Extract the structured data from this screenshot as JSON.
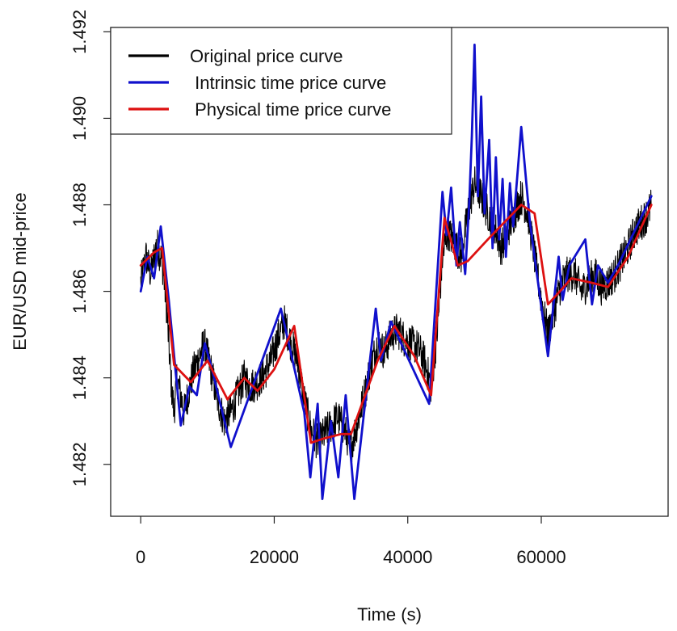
{
  "chart_data": {
    "type": "line",
    "title": "",
    "xlabel": "Time (s)",
    "ylabel": "EUR/USD mid-price",
    "xlim": [
      -4500,
      79000
    ],
    "ylim": [
      1.4808,
      1.4921
    ],
    "x_ticks": [
      {
        "value": 0,
        "label": "0"
      },
      {
        "value": 20000,
        "label": "20000"
      },
      {
        "value": 40000,
        "label": "40000"
      },
      {
        "value": 60000,
        "label": "60000"
      }
    ],
    "y_ticks": [
      {
        "value": 1.482,
        "label": "1.482"
      },
      {
        "value": 1.484,
        "label": "1.484"
      },
      {
        "value": 1.486,
        "label": "1.486"
      },
      {
        "value": 1.488,
        "label": "1.488"
      },
      {
        "value": 1.49,
        "label": "1.490"
      },
      {
        "value": 1.492,
        "label": "1.492"
      }
    ],
    "legend": {
      "position": "top-left",
      "entries": [
        {
          "label": "Original price curve",
          "color": "#000000"
        },
        {
          "label": " Intrinsic time price curve",
          "color": "#1010cc"
        },
        {
          "label": " Physical time price curve",
          "color": "#dd1111"
        }
      ]
    },
    "series": [
      {
        "name": "Original price curve",
        "color": "#000000",
        "kind": "noisy",
        "points": [
          [
            0,
            1.4862
          ],
          [
            800,
            1.4868
          ],
          [
            1500,
            1.4864
          ],
          [
            2400,
            1.4871
          ],
          [
            3200,
            1.4867
          ],
          [
            3800,
            1.4858
          ],
          [
            4200,
            1.4848
          ],
          [
            4600,
            1.4838
          ],
          [
            5000,
            1.4832
          ],
          [
            5400,
            1.484
          ],
          [
            6000,
            1.4836
          ],
          [
            6500,
            1.4832
          ],
          [
            7200,
            1.4837
          ],
          [
            8000,
            1.4842
          ],
          [
            8800,
            1.4845
          ],
          [
            9500,
            1.4848
          ],
          [
            10500,
            1.4842
          ],
          [
            11500,
            1.4835
          ],
          [
            12500,
            1.483
          ],
          [
            13500,
            1.4832
          ],
          [
            14500,
            1.4836
          ],
          [
            15500,
            1.484
          ],
          [
            16500,
            1.4838
          ],
          [
            17500,
            1.4839
          ],
          [
            18500,
            1.4841
          ],
          [
            19500,
            1.4844
          ],
          [
            20500,
            1.4849
          ],
          [
            21500,
            1.4853
          ],
          [
            22500,
            1.4848
          ],
          [
            23500,
            1.4844
          ],
          [
            24500,
            1.4835
          ],
          [
            25500,
            1.4828
          ],
          [
            26500,
            1.4825
          ],
          [
            27500,
            1.4827
          ],
          [
            28500,
            1.4829
          ],
          [
            29500,
            1.4831
          ],
          [
            30500,
            1.4828
          ],
          [
            31500,
            1.4824
          ],
          [
            32500,
            1.483
          ],
          [
            33500,
            1.4836
          ],
          [
            34500,
            1.4843
          ],
          [
            35500,
            1.4848
          ],
          [
            36500,
            1.4846
          ],
          [
            37500,
            1.485
          ],
          [
            38500,
            1.4851
          ],
          [
            39500,
            1.4849
          ],
          [
            40500,
            1.4848
          ],
          [
            41500,
            1.4847
          ],
          [
            42500,
            1.4844
          ],
          [
            43500,
            1.4838
          ],
          [
            44500,
            1.4852
          ],
          [
            45200,
            1.4868
          ],
          [
            46000,
            1.4874
          ],
          [
            47000,
            1.4871
          ],
          [
            48000,
            1.4868
          ],
          [
            49000,
            1.4878
          ],
          [
            50000,
            1.4885
          ],
          [
            51000,
            1.4882
          ],
          [
            52000,
            1.4878
          ],
          [
            53000,
            1.4875
          ],
          [
            54000,
            1.487
          ],
          [
            55000,
            1.4874
          ],
          [
            56000,
            1.4878
          ],
          [
            57000,
            1.4882
          ],
          [
            58000,
            1.4878
          ],
          [
            59000,
            1.4868
          ],
          [
            60000,
            1.4858
          ],
          [
            61000,
            1.485
          ],
          [
            62000,
            1.4856
          ],
          [
            63000,
            1.4862
          ],
          [
            64000,
            1.4864
          ],
          [
            65000,
            1.4864
          ],
          [
            66000,
            1.486
          ],
          [
            67000,
            1.4862
          ],
          [
            68000,
            1.4864
          ],
          [
            69000,
            1.4861
          ],
          [
            70000,
            1.4862
          ],
          [
            71000,
            1.4864
          ],
          [
            72000,
            1.4867
          ],
          [
            73000,
            1.487
          ],
          [
            74000,
            1.4874
          ],
          [
            75000,
            1.4876
          ],
          [
            76000,
            1.4878
          ],
          [
            76500,
            1.488
          ]
        ]
      },
      {
        "name": "Intrinsic time price curve",
        "color": "#1010cc",
        "kind": "polyline",
        "points": [
          [
            0,
            1.486
          ],
          [
            1000,
            1.4868
          ],
          [
            2000,
            1.4863
          ],
          [
            3000,
            1.4875
          ],
          [
            4200,
            1.4858
          ],
          [
            6000,
            1.4829
          ],
          [
            7300,
            1.4838
          ],
          [
            8400,
            1.4836
          ],
          [
            9600,
            1.4848
          ],
          [
            10500,
            1.4843
          ],
          [
            13500,
            1.4824
          ],
          [
            21000,
            1.4856
          ],
          [
            24500,
            1.4832
          ],
          [
            25400,
            1.4817
          ],
          [
            26500,
            1.4834
          ],
          [
            27200,
            1.4812
          ],
          [
            28500,
            1.483
          ],
          [
            29600,
            1.4817
          ],
          [
            30700,
            1.4836
          ],
          [
            32000,
            1.4812
          ],
          [
            35200,
            1.4856
          ],
          [
            36000,
            1.4844
          ],
          [
            37500,
            1.4853
          ],
          [
            43200,
            1.4834
          ],
          [
            45200,
            1.4883
          ],
          [
            45800,
            1.4873
          ],
          [
            46500,
            1.4884
          ],
          [
            47300,
            1.4866
          ],
          [
            47800,
            1.4876
          ],
          [
            48600,
            1.4864
          ],
          [
            49200,
            1.488
          ],
          [
            49600,
            1.4896
          ],
          [
            50000,
            1.4917
          ],
          [
            50500,
            1.4882
          ],
          [
            51000,
            1.4905
          ],
          [
            51500,
            1.4878
          ],
          [
            52200,
            1.4895
          ],
          [
            52700,
            1.487
          ],
          [
            53200,
            1.4891
          ],
          [
            53700,
            1.4872
          ],
          [
            54200,
            1.4886
          ],
          [
            54700,
            1.4868
          ],
          [
            55300,
            1.4885
          ],
          [
            55800,
            1.4875
          ],
          [
            57000,
            1.4898
          ],
          [
            58300,
            1.4876
          ],
          [
            61000,
            1.4845
          ],
          [
            62600,
            1.4868
          ],
          [
            63200,
            1.4858
          ],
          [
            64200,
            1.4866
          ],
          [
            66600,
            1.4872
          ],
          [
            67600,
            1.4857
          ],
          [
            68500,
            1.4866
          ],
          [
            70000,
            1.4862
          ],
          [
            71500,
            1.4866
          ],
          [
            76500,
            1.4882
          ]
        ]
      },
      {
        "name": "Physical time price curve",
        "color": "#dd1111",
        "kind": "polyline",
        "points": [
          [
            0,
            1.4866
          ],
          [
            2000,
            1.4869
          ],
          [
            3200,
            1.487
          ],
          [
            5000,
            1.4843
          ],
          [
            7500,
            1.4839
          ],
          [
            10000,
            1.4844
          ],
          [
            13000,
            1.4835
          ],
          [
            15500,
            1.484
          ],
          [
            17500,
            1.4837
          ],
          [
            20000,
            1.4842
          ],
          [
            23000,
            1.4852
          ],
          [
            25500,
            1.4825
          ],
          [
            27500,
            1.4826
          ],
          [
            30000,
            1.4827
          ],
          [
            31500,
            1.4827
          ],
          [
            35500,
            1.4844
          ],
          [
            38000,
            1.4852
          ],
          [
            41000,
            1.4845
          ],
          [
            43500,
            1.4836
          ],
          [
            45500,
            1.4877
          ],
          [
            47500,
            1.4866
          ],
          [
            49000,
            1.4867
          ],
          [
            52000,
            1.4872
          ],
          [
            57000,
            1.488
          ],
          [
            59000,
            1.4878
          ],
          [
            61000,
            1.4857
          ],
          [
            62800,
            1.486
          ],
          [
            64500,
            1.4863
          ],
          [
            67500,
            1.4862
          ],
          [
            70000,
            1.4861
          ],
          [
            73000,
            1.4868
          ],
          [
            76500,
            1.488
          ]
        ]
      }
    ]
  }
}
